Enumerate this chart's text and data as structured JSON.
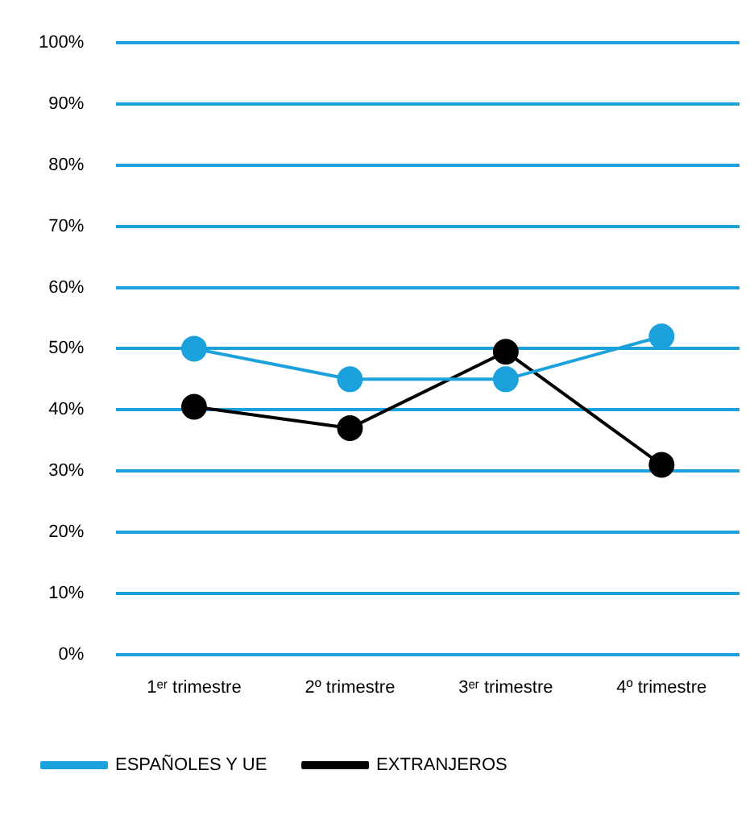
{
  "chart_data": {
    "type": "line",
    "categories": [
      "1ᵉʳ trimestre",
      "2º trimestre",
      "3ᵉʳ trimestre",
      "4º trimestre"
    ],
    "series": [
      {
        "name": "ESPAÑOLES Y UE",
        "color": "#1ba1db",
        "values": [
          50,
          45,
          45,
          52
        ]
      },
      {
        "name": "EXTRANJEROS",
        "color": "#000000",
        "values": [
          40.5,
          37,
          49.5,
          31
        ]
      }
    ],
    "ylim": [
      0,
      100
    ],
    "yticks": [
      {
        "value": 0,
        "label": "0%"
      },
      {
        "value": 10,
        "label": "10%"
      },
      {
        "value": 20,
        "label": "20%"
      },
      {
        "value": 30,
        "label": "30%"
      },
      {
        "value": 40,
        "label": "40%"
      },
      {
        "value": 50,
        "label": "50%"
      },
      {
        "value": 60,
        "label": "60%"
      },
      {
        "value": 70,
        "label": "70%"
      },
      {
        "value": 80,
        "label": "80%"
      },
      {
        "value": 90,
        "label": "90%"
      },
      {
        "value": 100,
        "label": "100%"
      }
    ],
    "grid": "y",
    "marker": "circle",
    "line_style": "solid",
    "legend": "bottom"
  }
}
